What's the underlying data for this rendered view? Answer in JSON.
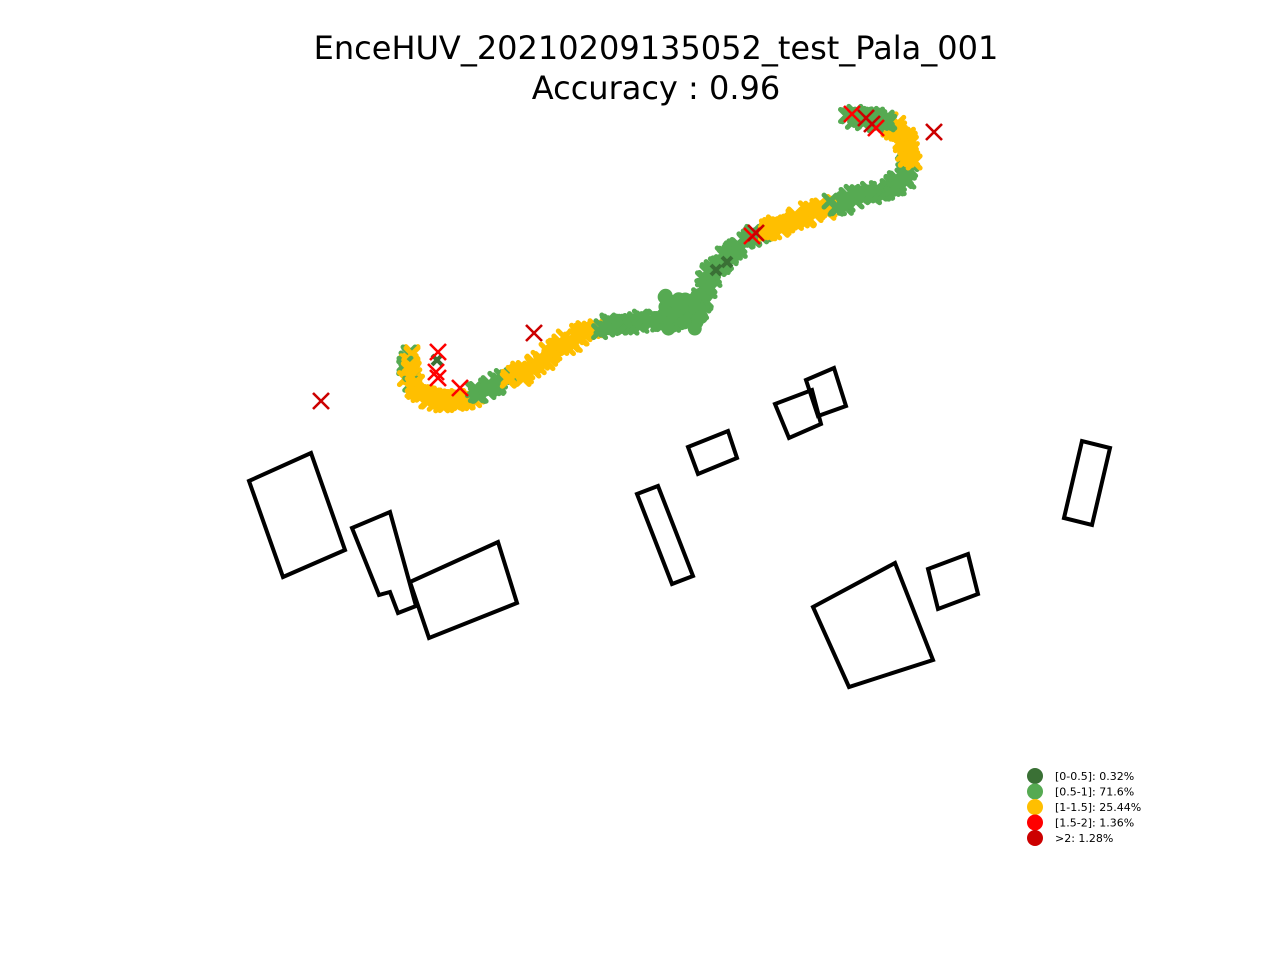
{
  "chart_data": {
    "type": "scatter",
    "title": "EnceHUV_20210209135052_test_Pala_001",
    "subtitle": "Accuracy : 0.96",
    "grid": false,
    "axes_visible": false,
    "legend_position": "lower-right",
    "colors": {
      "0-0.5": "#3a7035",
      "0.5-1": "#56aa52",
      "1-1.5": "#ffbf00",
      "1.5-2": "#ff0000",
      "gt2": "#cc0000",
      "building": "#000000"
    },
    "legend": [
      {
        "key": "0-0.5",
        "label": "[0-0.5]: 0.32%"
      },
      {
        "key": "0.5-1",
        "label": "[0.5-1]: 71.6%"
      },
      {
        "key": "1-1.5",
        "label": "[1-1.5]: 25.44%"
      },
      {
        "key": "1.5-2",
        "label": "[1.5-2]: 1.36%"
      },
      {
        "key": "gt2",
        "label": ">2: 1.28%"
      }
    ]
  }
}
